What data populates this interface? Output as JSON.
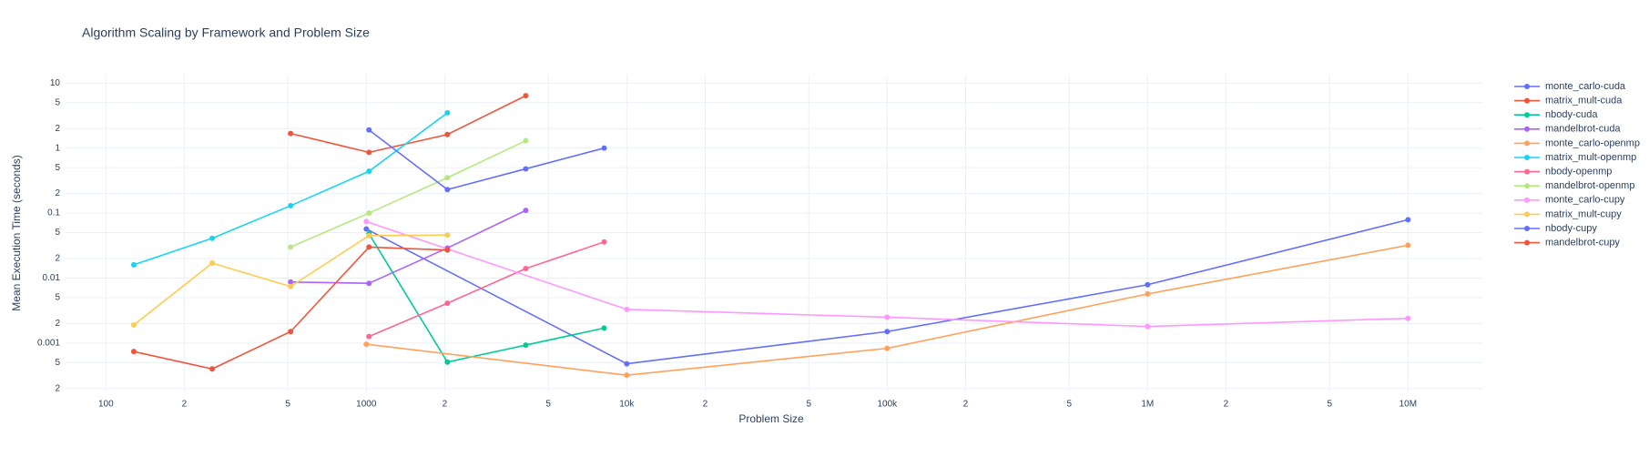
{
  "chart_data": {
    "type": "line",
    "title": "Algorithm Scaling by Framework and Problem Size",
    "x_label": "Problem Size",
    "y_label": "Mean Execution Time (seconds)",
    "log_x": true,
    "log_y": true,
    "grid": true,
    "legend": "right",
    "xlim": [
      70,
      19300000
    ],
    "ylim": [
      0.00018,
      13.5
    ],
    "xticks": [
      100,
      {
        "value": 200,
        "label": "2"
      },
      {
        "value": 500,
        "label": "5"
      },
      1000,
      {
        "value": 2000,
        "label": "2"
      },
      {
        "value": 5000,
        "label": "5"
      },
      {
        "value": 10000,
        "label": "10k"
      },
      {
        "value": 20000,
        "label": "2"
      },
      {
        "value": 50000,
        "label": "5"
      },
      {
        "value": 100000,
        "label": "100k"
      },
      {
        "value": 200000,
        "label": "2"
      },
      {
        "value": 500000,
        "label": "5"
      },
      {
        "value": 1000000,
        "label": "1M"
      },
      {
        "value": 2000000,
        "label": "2"
      },
      {
        "value": 5000000,
        "label": "5"
      },
      {
        "value": 10000000,
        "label": "10M"
      }
    ],
    "yticks": [
      {
        "value": 0.0002,
        "label": "2"
      },
      {
        "value": 0.0005,
        "label": "5"
      },
      0.001,
      {
        "value": 0.002,
        "label": "2"
      },
      {
        "value": 0.005,
        "label": "5"
      },
      0.01,
      {
        "value": 0.02,
        "label": "2"
      },
      {
        "value": 0.05,
        "label": "5"
      },
      0.1,
      {
        "value": 0.2,
        "label": "2"
      },
      {
        "value": 0.5,
        "label": "5"
      },
      1,
      2,
      5,
      10
    ],
    "series": [
      {
        "name": "monte_carlo-cuda",
        "color": "#636efa",
        "x": [
          1000,
          10000,
          100000,
          1000000,
          10000000
        ],
        "values": [
          0.057,
          0.00048,
          0.0015,
          0.0079,
          0.079
        ]
      },
      {
        "name": "matrix_mult-cuda",
        "color": "#EF553B",
        "x": [
          512,
          1024,
          2048,
          4096
        ],
        "values": [
          1.68,
          0.86,
          1.62,
          6.4
        ]
      },
      {
        "name": "nbody-cuda",
        "color": "#00cc96",
        "x": [
          1024,
          2048,
          4096,
          8192
        ],
        "values": [
          0.048,
          0.00051,
          0.00093,
          0.0017
        ]
      },
      {
        "name": "mandelbrot-cuda",
        "color": "#ab63fa",
        "x": [
          512,
          1024,
          2048,
          4096
        ],
        "values": [
          0.0087,
          0.0083,
          0.029,
          0.11
        ]
      },
      {
        "name": "monte_carlo-openmp",
        "color": "#FFA15A",
        "x": [
          1000,
          10000,
          100000,
          1000000,
          10000000
        ],
        "values": [
          0.00096,
          0.00032,
          0.00083,
          0.0057,
          0.032
        ]
      },
      {
        "name": "matrix_mult-openmp",
        "color": "#19d3f3",
        "x": [
          128,
          256,
          512,
          1024,
          2048
        ],
        "values": [
          0.016,
          0.041,
          0.13,
          0.44,
          3.5
        ]
      },
      {
        "name": "nbody-openmp",
        "color": "#FF6692",
        "x": [
          1024,
          2048,
          4096,
          8192
        ],
        "values": [
          0.00126,
          0.0041,
          0.014,
          0.036
        ]
      },
      {
        "name": "mandelbrot-openmp",
        "color": "#B6E880",
        "x": [
          512,
          1024,
          2048,
          4096
        ],
        "values": [
          0.03,
          0.1,
          0.35,
          1.3
        ]
      },
      {
        "name": "monte_carlo-cupy",
        "color": "#FF97FF",
        "x": [
          1000,
          10000,
          100000,
          1000000,
          10000000
        ],
        "values": [
          0.074,
          0.0033,
          0.0025,
          0.0018,
          0.0024
        ]
      },
      {
        "name": "matrix_mult-cupy",
        "color": "#FECB52",
        "x": [
          128,
          256,
          512,
          1024,
          2048
        ],
        "values": [
          0.0019,
          0.017,
          0.0074,
          0.045,
          0.046
        ]
      },
      {
        "name": "nbody-cupy",
        "color": "#636efa",
        "x": [
          1024,
          2048,
          4096,
          8192
        ],
        "values": [
          1.9,
          0.23,
          0.48,
          1.0
        ]
      },
      {
        "name": "mandelbrot-cupy",
        "color": "#EF553B",
        "x": [
          128,
          256,
          512,
          1024,
          2048
        ],
        "values": [
          0.00074,
          0.0004,
          0.0015,
          0.03,
          0.027
        ]
      }
    ]
  }
}
